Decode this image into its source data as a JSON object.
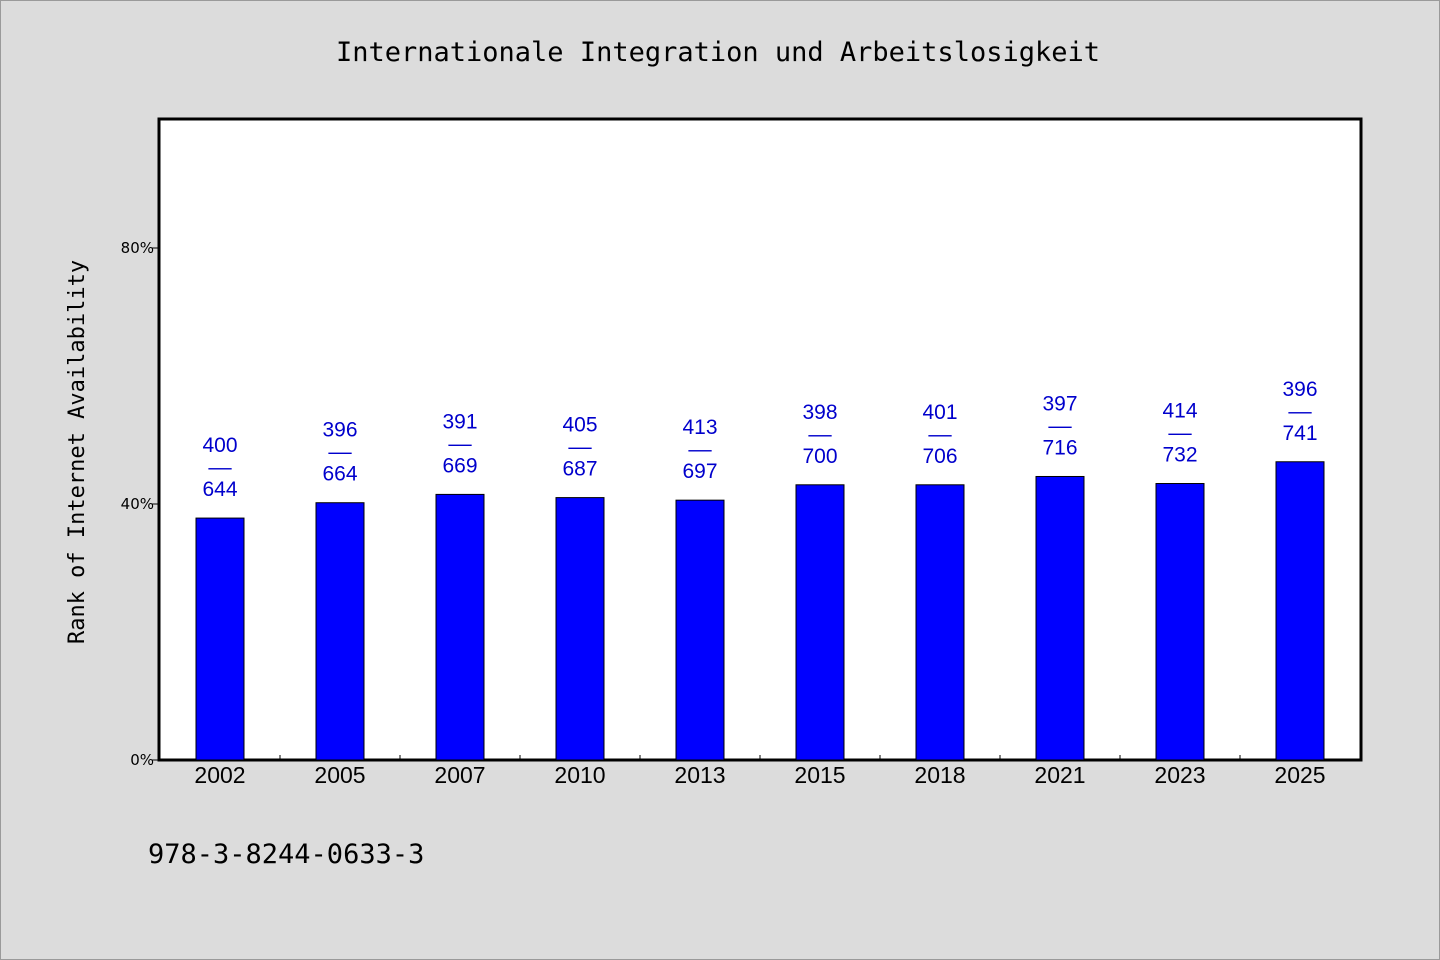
{
  "chart_data": {
    "type": "bar",
    "title": "Internationale Integration und Arbeitslosigkeit",
    "ylabel": "Rank of Internet Availability",
    "xlabel": "",
    "categories": [
      "2002",
      "2005",
      "2007",
      "2010",
      "2013",
      "2015",
      "2018",
      "2021",
      "2023",
      "2025"
    ],
    "values": [
      37.8,
      40.2,
      41.5,
      41.0,
      40.6,
      43.0,
      43.0,
      44.3,
      43.2,
      46.6
    ],
    "data_labels": [
      {
        "top": "400",
        "sep": "––",
        "bottom": "644"
      },
      {
        "top": "396",
        "sep": "––",
        "bottom": "664"
      },
      {
        "top": "391",
        "sep": "––",
        "bottom": "669"
      },
      {
        "top": "405",
        "sep": "––",
        "bottom": "687"
      },
      {
        "top": "413",
        "sep": "––",
        "bottom": "697"
      },
      {
        "top": "398",
        "sep": "––",
        "bottom": "700"
      },
      {
        "top": "401",
        "sep": "––",
        "bottom": "706"
      },
      {
        "top": "397",
        "sep": "––",
        "bottom": "716"
      },
      {
        "top": "414",
        "sep": "––",
        "bottom": "732"
      },
      {
        "top": "396",
        "sep": "––",
        "bottom": "741"
      }
    ],
    "ylim": [
      0,
      100
    ],
    "yticks": [
      {
        "value": 0,
        "label": "0%"
      },
      {
        "value": 40,
        "label": "40%"
      },
      {
        "value": 80,
        "label": "80%"
      }
    ],
    "grid": false,
    "legend": "none",
    "colors": {
      "bar": "#0000ff",
      "label": "#0000cc",
      "page_background": "#dcdcdc",
      "plot_background": "#ffffff"
    }
  },
  "footer": {
    "isbn": "978-3-8244-0633-3"
  }
}
